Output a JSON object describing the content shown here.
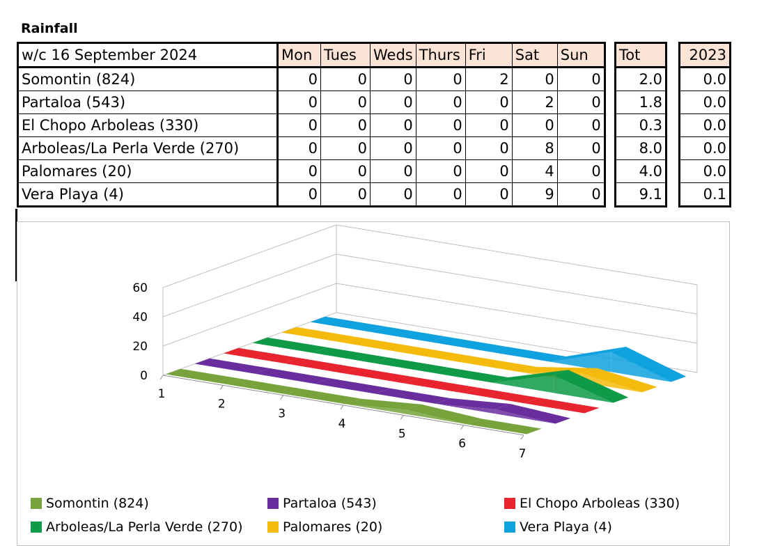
{
  "title": "Rainfall",
  "table": {
    "week_label": "w/c  16 September 2024",
    "days": [
      "Mon",
      "Tues",
      "Weds",
      "Thurs",
      "Fri",
      "Sat",
      "Sun"
    ],
    "tot_label": "Tot",
    "prev_label": "2023",
    "rows": [
      {
        "name": "Somontin (824)",
        "values": [
          "0",
          "0",
          "0",
          "0",
          "2",
          "0",
          "0"
        ],
        "tot": "2.0",
        "prev": "0.0"
      },
      {
        "name": "Partaloa (543)",
        "values": [
          "0",
          "0",
          "0",
          "0",
          "0",
          "2",
          "0"
        ],
        "tot": "1.8",
        "prev": "0.0"
      },
      {
        "name": "El Chopo Arboleas (330)",
        "values": [
          "0",
          "0",
          "0",
          "0",
          "0",
          "0",
          "0"
        ],
        "tot": "0.3",
        "prev": "0.0"
      },
      {
        "name": "Arboleas/La Perla Verde (270)",
        "values": [
          "0",
          "0",
          "0",
          "0",
          "0",
          "8",
          "0"
        ],
        "tot": "8.0",
        "prev": "0.0"
      },
      {
        "name": "Palomares (20)",
        "values": [
          "0",
          "0",
          "0",
          "0",
          "0",
          "4",
          "0"
        ],
        "tot": "4.0",
        "prev": "0.0"
      },
      {
        "name": "Vera Playa (4)",
        "values": [
          "0",
          "0",
          "0",
          "0",
          "0",
          "9",
          "0"
        ],
        "tot": "9.1",
        "prev": "0.1"
      }
    ]
  },
  "chart_data": {
    "type": "area",
    "categories": [
      "1",
      "2",
      "3",
      "4",
      "5",
      "6",
      "7"
    ],
    "y_ticks": [
      "0",
      "20",
      "40",
      "60"
    ],
    "ylim": [
      0,
      60
    ],
    "legend_position": "bottom",
    "series": [
      {
        "name": "Somontin (824)",
        "color": "#77a33c",
        "values": [
          0,
          0,
          0,
          0,
          2,
          0,
          0
        ]
      },
      {
        "name": "Partaloa (543)",
        "color": "#6a2d9e",
        "values": [
          0,
          0,
          0,
          0,
          0,
          2,
          0
        ]
      },
      {
        "name": "El Chopo Arboleas (330)",
        "color": "#e8252e",
        "values": [
          0,
          0,
          0,
          0,
          0,
          0,
          0
        ]
      },
      {
        "name": "Arboleas/La Perla Verde (270)",
        "color": "#0e9a47",
        "values": [
          0,
          0,
          0,
          0,
          0,
          8,
          0
        ]
      },
      {
        "name": "Palomares (20)",
        "color": "#f5bb0c",
        "values": [
          0,
          0,
          0,
          0,
          0,
          4,
          0
        ]
      },
      {
        "name": "Vera Playa (4)",
        "color": "#10a1df",
        "values": [
          0,
          0,
          0,
          0,
          0,
          9,
          0
        ]
      }
    ]
  }
}
